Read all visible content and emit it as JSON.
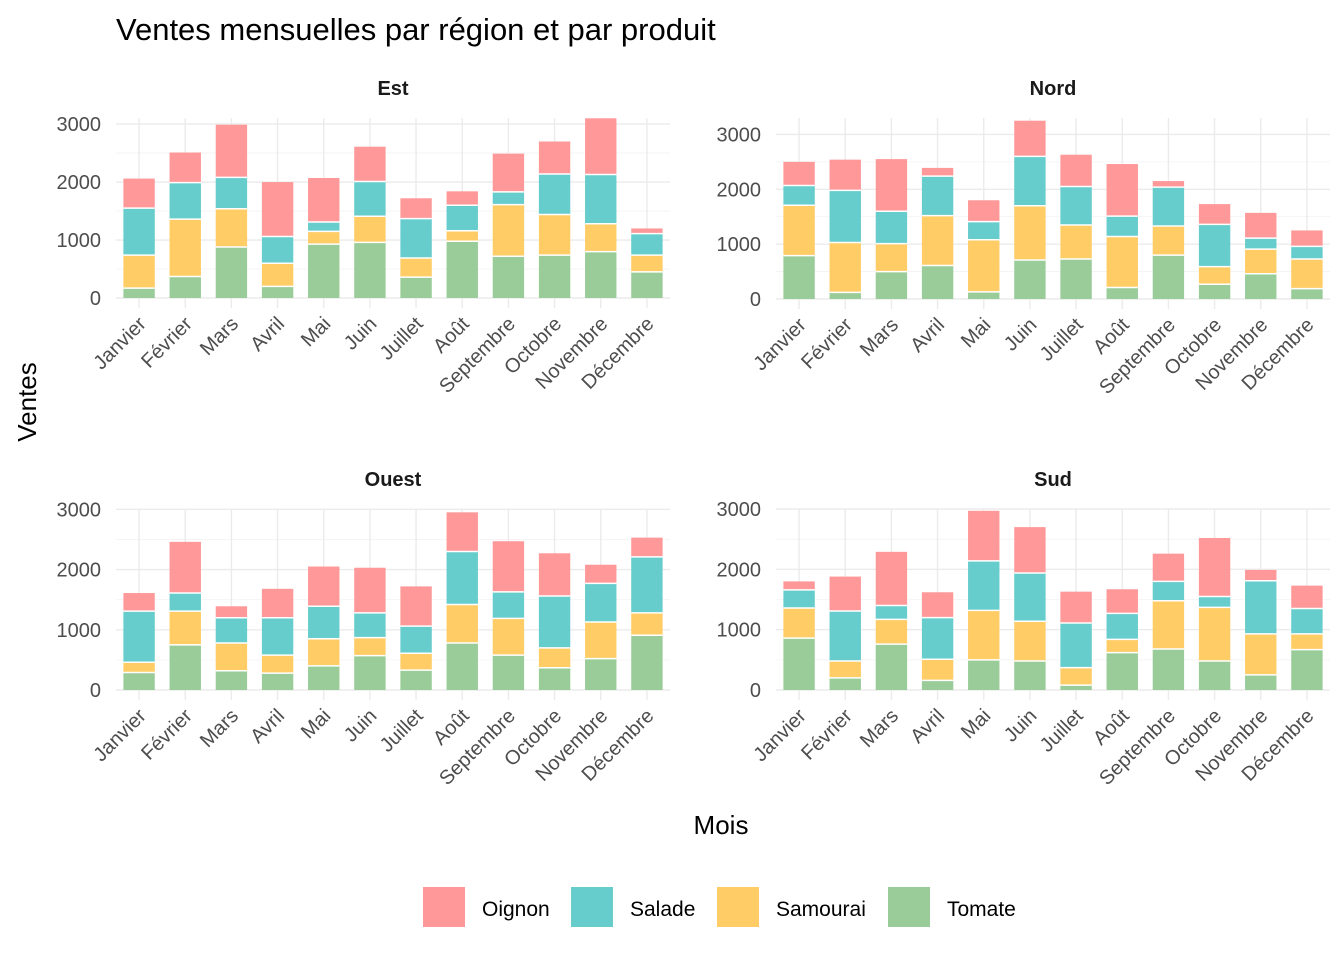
{
  "chart_data": {
    "type": "bar",
    "stacked": true,
    "title": "Ventes mensuelles par région et par produit",
    "xlabel": "Mois",
    "ylabel": "Ventes",
    "grid": true,
    "legend_position": "bottom",
    "categories": [
      "Janvier",
      "Février",
      "Mars",
      "Avril",
      "Mai",
      "Juin",
      "Juillet",
      "Août",
      "Septembre",
      "Octobre",
      "Novembre",
      "Décembre"
    ],
    "legend": [
      {
        "name": "Oignon",
        "color": "#FF9999"
      },
      {
        "name": "Salade",
        "color": "#66CCCC"
      },
      {
        "name": "Samourai",
        "color": "#FFCC66"
      },
      {
        "name": "Tomate",
        "color": "#99CC99"
      }
    ],
    "stack_order_bottom_to_top": [
      "Tomate",
      "Samourai",
      "Salade",
      "Oignon"
    ],
    "panels": [
      {
        "region": "Est",
        "ylim": [
          0,
          3100
        ],
        "yticks": [
          0,
          1000,
          2000,
          3000
        ],
        "series": [
          {
            "name": "Tomate",
            "values": [
              170,
              370,
              880,
              200,
              930,
              960,
              360,
              980,
              720,
              740,
              800,
              450
            ]
          },
          {
            "name": "Samourai",
            "values": [
              570,
              990,
              660,
              400,
              220,
              450,
              330,
              180,
              890,
              700,
              480,
              290
            ]
          },
          {
            "name": "Salade",
            "values": [
              810,
              630,
              540,
              460,
              160,
              600,
              680,
              440,
              220,
              700,
              850,
              370
            ]
          },
          {
            "name": "Oignon",
            "values": [
              510,
              520,
              910,
              940,
              760,
              600,
              350,
              240,
              660,
              560,
              970,
              90
            ]
          }
        ]
      },
      {
        "region": "Nord",
        "ylim": [
          0,
          3300
        ],
        "yticks": [
          0,
          1000,
          2000,
          3000
        ],
        "series": [
          {
            "name": "Tomate",
            "values": [
              790,
              120,
              500,
              610,
              130,
              710,
              730,
              210,
              800,
              270,
              460,
              190
            ]
          },
          {
            "name": "Samourai",
            "values": [
              920,
              910,
              510,
              910,
              950,
              990,
              620,
              930,
              530,
              320,
              450,
              540
            ]
          },
          {
            "name": "Salade",
            "values": [
              360,
              950,
              590,
              720,
              330,
              900,
              700,
              370,
              710,
              770,
              200,
              230
            ]
          },
          {
            "name": "Oignon",
            "values": [
              430,
              560,
              950,
              150,
              390,
              650,
              580,
              950,
              110,
              370,
              460,
              290
            ]
          }
        ]
      },
      {
        "region": "Ouest",
        "ylim": [
          0,
          3000
        ],
        "yticks": [
          0,
          1000,
          2000,
          3000
        ],
        "series": [
          {
            "name": "Tomate",
            "values": [
              290,
              750,
              320,
              280,
              400,
              570,
              330,
              780,
              580,
              370,
              520,
              910
            ]
          },
          {
            "name": "Samourai",
            "values": [
              170,
              560,
              460,
              300,
              450,
              300,
              280,
              640,
              610,
              330,
              610,
              370
            ]
          },
          {
            "name": "Salade",
            "values": [
              850,
              300,
              420,
              620,
              540,
              410,
              450,
              880,
              440,
              860,
              640,
              930
            ]
          },
          {
            "name": "Oignon",
            "values": [
              300,
              850,
              190,
              480,
              660,
              750,
              660,
              650,
              840,
              710,
              310,
              320
            ]
          }
        ]
      },
      {
        "region": "Sud",
        "ylim": [
          0,
          3000
        ],
        "yticks": [
          0,
          1000,
          2000,
          3000
        ],
        "series": [
          {
            "name": "Tomate",
            "values": [
              860,
              200,
              760,
              160,
              500,
              480,
              80,
              620,
              680,
              480,
              250,
              670
            ]
          },
          {
            "name": "Samourai",
            "values": [
              500,
              280,
              410,
              350,
              820,
              660,
              290,
              220,
              800,
              890,
              680,
              260
            ]
          },
          {
            "name": "Salade",
            "values": [
              300,
              830,
              230,
              690,
              820,
              800,
              740,
              430,
              320,
              180,
              880,
              420
            ]
          },
          {
            "name": "Oignon",
            "values": [
              140,
              570,
              890,
              420,
              830,
              760,
              520,
              400,
              460,
              970,
              180,
              380
            ]
          }
        ]
      }
    ]
  }
}
